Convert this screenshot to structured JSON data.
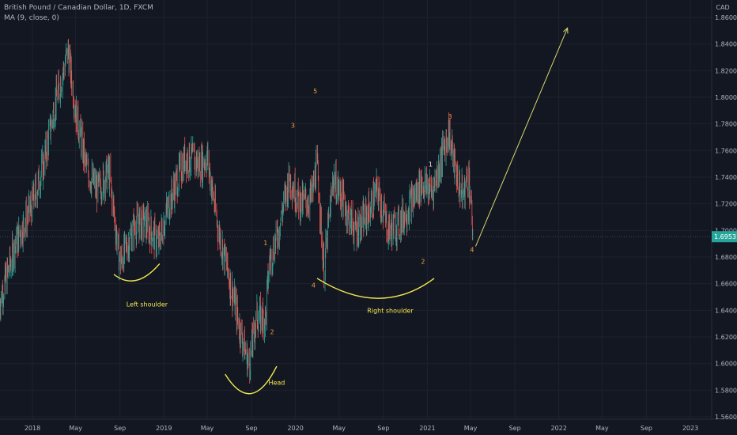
{
  "header": {
    "symbol_line": "British Pound / Canadian Dollar, 1D, FXCM",
    "indicator_line": "MA (9, close, 0)"
  },
  "chart_data": {
    "type": "candlestick",
    "currency": "CAD",
    "last_price": "1.69531",
    "ylim": [
      1.555,
      1.87
    ],
    "y_ticks": [
      "1.86000",
      "1.84000",
      "1.82000",
      "1.80000",
      "1.78000",
      "1.76000",
      "1.74000",
      "1.72000",
      "1.70000",
      "1.68000",
      "1.66000",
      "1.64000",
      "1.62000",
      "1.60000",
      "1.58000",
      "1.56000"
    ],
    "y_tick_values": [
      1.86,
      1.84,
      1.82,
      1.8,
      1.78,
      1.76,
      1.74,
      1.72,
      1.7,
      1.68,
      1.66,
      1.64,
      1.62,
      1.6,
      1.58,
      1.56
    ],
    "x_ticks": [
      {
        "label": "2018",
        "date": "2018-01-01"
      },
      {
        "label": "May",
        "date": "2018-05-01"
      },
      {
        "label": "Sep",
        "date": "2018-09-01"
      },
      {
        "label": "2019",
        "date": "2019-01-01"
      },
      {
        "label": "May",
        "date": "2019-05-01"
      },
      {
        "label": "Sep",
        "date": "2019-09-01"
      },
      {
        "label": "2020",
        "date": "2020-01-01"
      },
      {
        "label": "May",
        "date": "2020-05-01"
      },
      {
        "label": "Sep",
        "date": "2020-09-01"
      },
      {
        "label": "2021",
        "date": "2021-01-01"
      },
      {
        "label": "May",
        "date": "2021-05-01"
      },
      {
        "label": "Sep",
        "date": "2021-09-01"
      },
      {
        "label": "2022",
        "date": "2022-01-01"
      },
      {
        "label": "May",
        "date": "2022-05-01"
      },
      {
        "label": "Sep",
        "date": "2022-09-01"
      },
      {
        "label": "2023",
        "date": "2023-01-01"
      }
    ],
    "price_path": [
      {
        "date": "2017-10-01",
        "close": 1.645
      },
      {
        "date": "2017-11-15",
        "close": 1.69
      },
      {
        "date": "2018-01-01",
        "close": 1.72
      },
      {
        "date": "2018-02-01",
        "close": 1.75
      },
      {
        "date": "2018-03-01",
        "close": 1.79
      },
      {
        "date": "2018-04-10",
        "close": 1.835
      },
      {
        "date": "2018-05-01",
        "close": 1.79
      },
      {
        "date": "2018-06-01",
        "close": 1.745
      },
      {
        "date": "2018-07-01",
        "close": 1.73
      },
      {
        "date": "2018-08-01",
        "close": 1.745
      },
      {
        "date": "2018-09-01",
        "close": 1.675
      },
      {
        "date": "2018-10-15",
        "close": 1.705
      },
      {
        "date": "2018-11-15",
        "close": 1.705
      },
      {
        "date": "2018-12-15",
        "close": 1.69
      },
      {
        "date": "2019-01-15",
        "close": 1.72
      },
      {
        "date": "2019-03-01",
        "close": 1.755
      },
      {
        "date": "2019-04-15",
        "close": 1.75
      },
      {
        "date": "2019-05-01",
        "close": 1.755
      },
      {
        "date": "2019-06-01",
        "close": 1.7
      },
      {
        "date": "2019-07-01",
        "close": 1.665
      },
      {
        "date": "2019-08-01",
        "close": 1.625
      },
      {
        "date": "2019-08-25",
        "close": 1.598
      },
      {
        "date": "2019-09-15",
        "close": 1.635
      },
      {
        "date": "2019-10-10",
        "close": 1.635
      },
      {
        "date": "2019-10-20",
        "close": 1.675
      },
      {
        "date": "2019-11-15",
        "close": 1.7
      },
      {
        "date": "2019-12-15",
        "close": 1.74
      },
      {
        "date": "2020-01-15",
        "close": 1.72
      },
      {
        "date": "2020-02-15",
        "close": 1.725
      },
      {
        "date": "2020-03-01",
        "close": 1.75
      },
      {
        "date": "2020-03-20",
        "close": 1.67
      },
      {
        "date": "2020-04-15",
        "close": 1.74
      },
      {
        "date": "2020-05-15",
        "close": 1.72
      },
      {
        "date": "2020-06-15",
        "close": 1.7
      },
      {
        "date": "2020-07-15",
        "close": 1.71
      },
      {
        "date": "2020-08-15",
        "close": 1.73
      },
      {
        "date": "2020-09-15",
        "close": 1.7
      },
      {
        "date": "2020-10-15",
        "close": 1.705
      },
      {
        "date": "2020-11-15",
        "close": 1.72
      },
      {
        "date": "2020-12-15",
        "close": 1.735
      },
      {
        "date": "2021-01-15",
        "close": 1.73
      },
      {
        "date": "2021-02-15",
        "close": 1.76
      },
      {
        "date": "2021-03-01",
        "close": 1.775
      },
      {
        "date": "2021-03-20",
        "close": 1.745
      },
      {
        "date": "2021-04-10",
        "close": 1.725
      },
      {
        "date": "2021-04-25",
        "close": 1.745
      },
      {
        "date": "2021-05-08",
        "close": 1.695
      }
    ],
    "annotations": [
      {
        "text": "Left shoulder",
        "date": "2018-11-15",
        "price": 1.643
      },
      {
        "text": "Head",
        "date": "2019-11-10",
        "price": 1.584
      },
      {
        "text": "Right shoulder",
        "date": "2020-09-20",
        "price": 1.638
      }
    ],
    "wave_labels": [
      {
        "text": "5",
        "date": "2020-02-25",
        "price": 1.803,
        "color": "#f0a13c"
      },
      {
        "text": "3",
        "date": "2019-12-25",
        "price": 1.777,
        "color": "#f0a13c"
      },
      {
        "text": "1",
        "date": "2019-10-10",
        "price": 1.689,
        "color": "#f0a13c"
      },
      {
        "text": "2",
        "date": "2019-10-28",
        "price": 1.622,
        "color": "#f0a13c"
      },
      {
        "text": "4",
        "date": "2020-02-20",
        "price": 1.657,
        "color": "#f0a13c"
      },
      {
        "text": "1",
        "date": "2021-01-10",
        "price": 1.748,
        "color": "#e6e6e6"
      },
      {
        "text": "2",
        "date": "2020-12-20",
        "price": 1.675,
        "color": "#f0a13c"
      },
      {
        "text": "3",
        "date": "2021-03-05",
        "price": 1.784,
        "color": "#f0a13c"
      },
      {
        "text": "4",
        "date": "2021-05-05",
        "price": 1.684,
        "color": "#f0a13c"
      }
    ],
    "arcs": [
      {
        "name": "left-shoulder-arc",
        "points": [
          [
            "2018-08-15",
            1.667
          ],
          [
            "2018-10-15",
            1.654
          ],
          [
            "2018-12-20",
            1.675
          ]
        ]
      },
      {
        "name": "head-arc",
        "points": [
          [
            "2019-06-20",
            1.592
          ],
          [
            "2019-09-01",
            1.56
          ],
          [
            "2019-11-10",
            1.598
          ]
        ]
      },
      {
        "name": "right-shoulder-arc",
        "points": [
          [
            "2020-03-01",
            1.664
          ],
          [
            "2020-08-25",
            1.634
          ],
          [
            "2021-01-20",
            1.664
          ]
        ]
      }
    ],
    "projection_arrow": {
      "from": [
        "2021-05-15",
        1.688
      ],
      "to": [
        "2022-01-25",
        1.852
      ]
    },
    "colors": {
      "background": "#131722",
      "grid": "#1e222d",
      "up": "#26a69a",
      "down": "#ef5350",
      "annotation": "#f5e94f",
      "wave": "#f0a13c",
      "price_tag": "#26a69a"
    }
  }
}
